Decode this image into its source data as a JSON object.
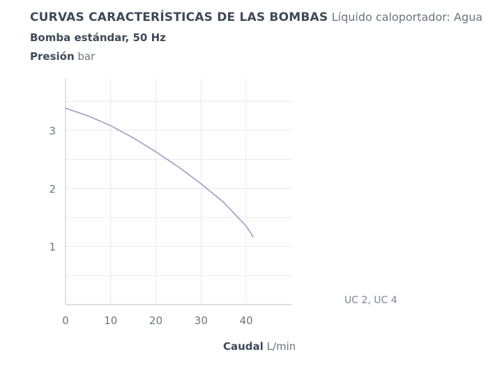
{
  "header": {
    "title": "CURVAS CARACTERÍSTICAS DE LAS BOMBAS",
    "title_note": "Líquido caloportador: Agua",
    "subtitle": "Bomba estándar, 50 Hz"
  },
  "chart_data": {
    "type": "line",
    "ylabel": "Presión",
    "ylabel_unit": "bar",
    "xlabel": "Caudal",
    "xlabel_unit": "L/min",
    "xlim": [
      0,
      50
    ],
    "ylim": [
      0,
      3.9
    ],
    "x_ticks": [
      0,
      10,
      20,
      30,
      40
    ],
    "y_ticks": [
      1,
      2,
      3
    ],
    "grid": true,
    "series": [
      {
        "name": "UC 2, UC 4",
        "color": "#9a9cc4",
        "x": [
          0,
          5,
          10,
          15,
          20,
          25,
          30,
          35,
          40,
          41.5
        ],
        "y": [
          3.38,
          3.25,
          3.08,
          2.87,
          2.63,
          2.37,
          2.08,
          1.76,
          1.35,
          1.17
        ]
      }
    ]
  }
}
